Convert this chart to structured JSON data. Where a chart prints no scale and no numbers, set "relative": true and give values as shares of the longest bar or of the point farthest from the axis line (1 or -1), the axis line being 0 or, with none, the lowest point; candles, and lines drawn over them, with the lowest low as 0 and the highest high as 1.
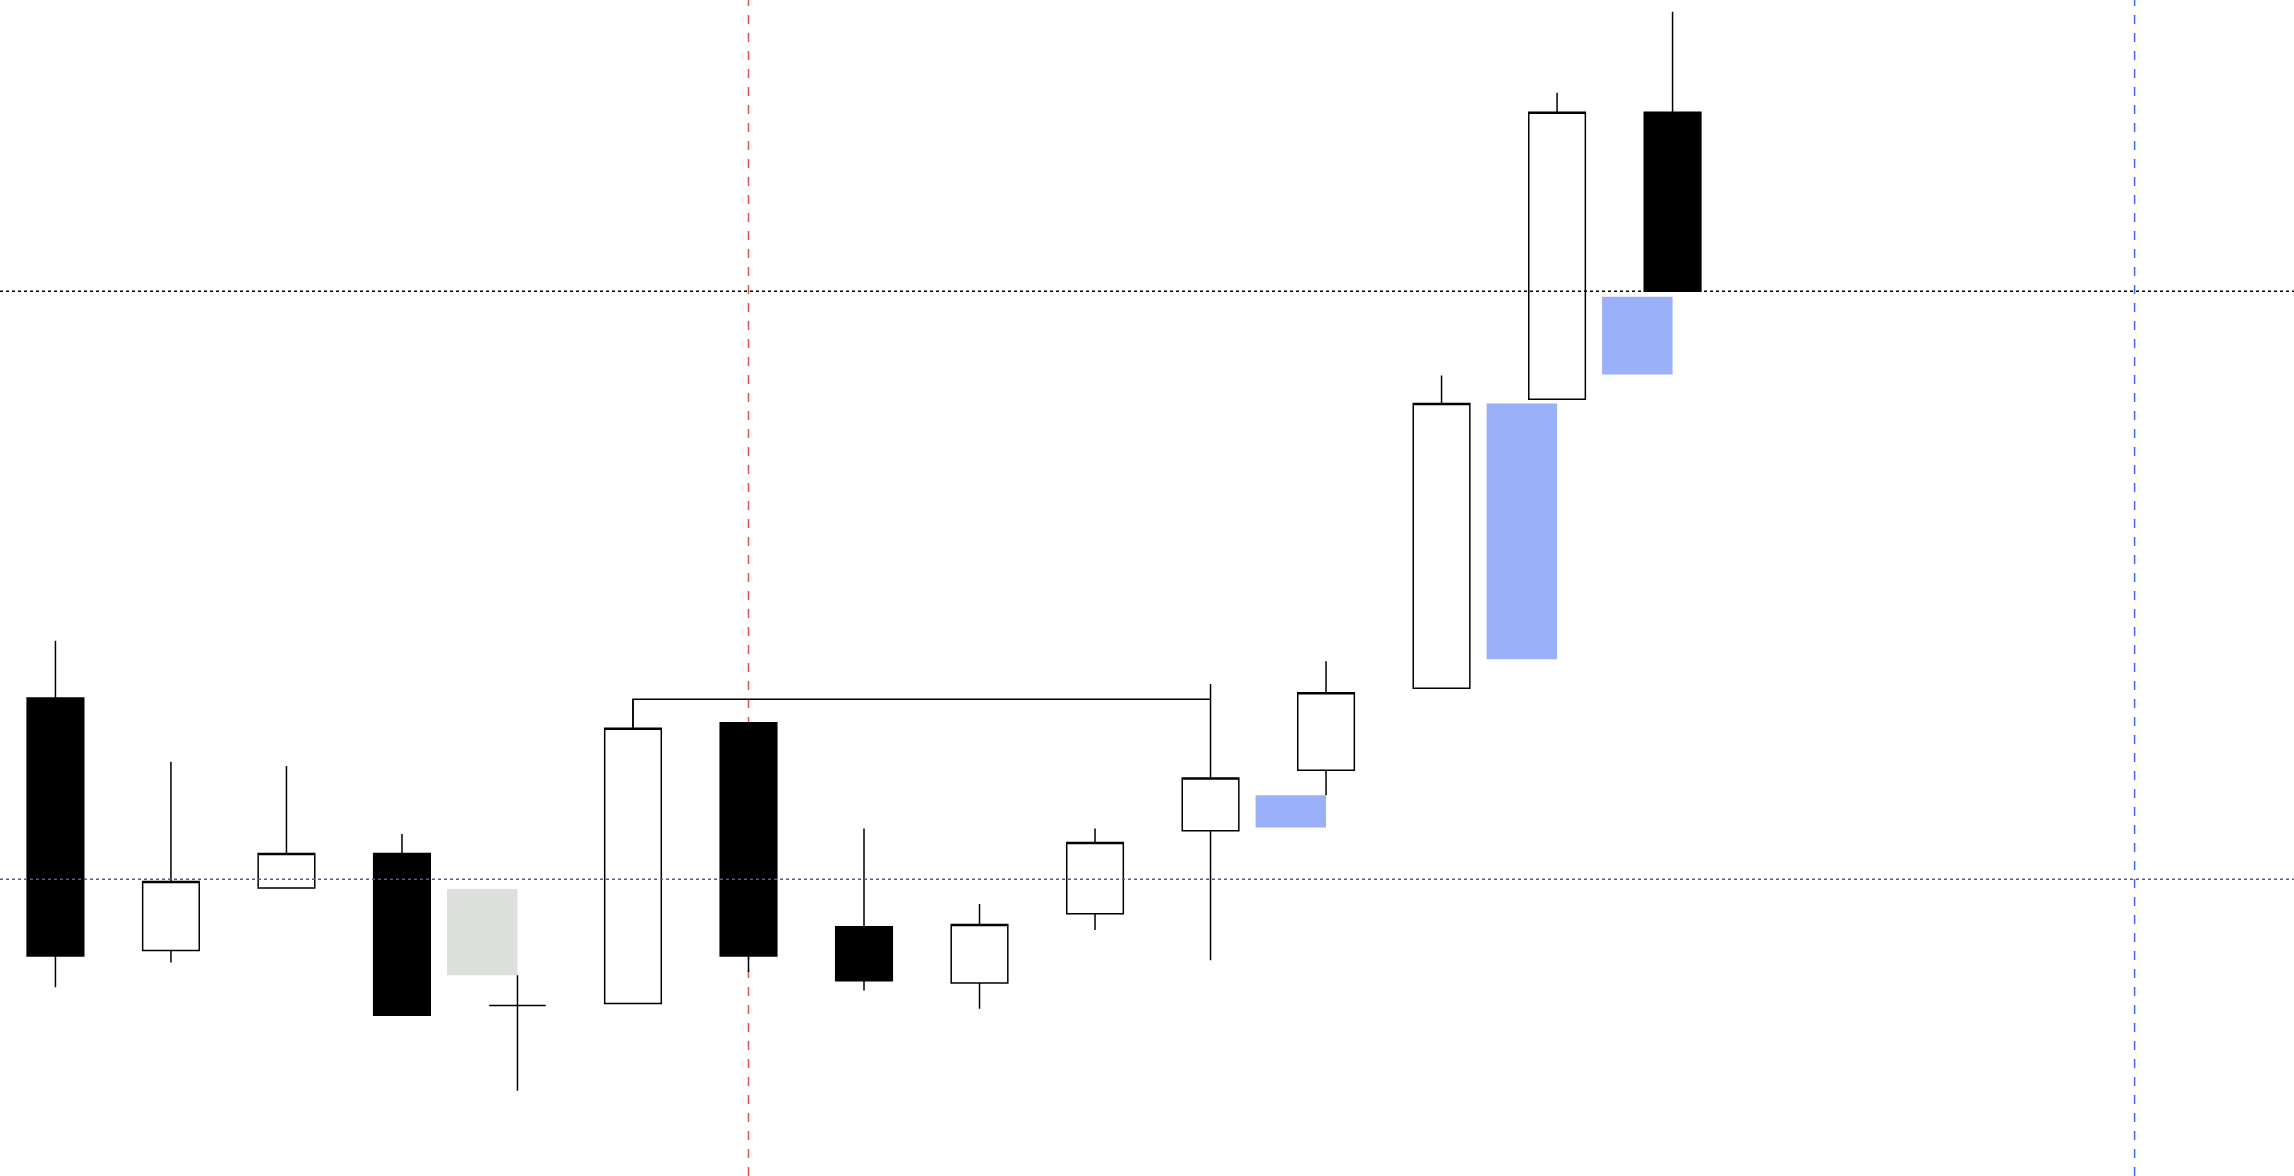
{
  "chart_data": {
    "type": "candlestick",
    "relative": true,
    "categories": [
      null,
      null,
      null,
      null,
      null,
      null,
      null,
      null,
      null,
      null,
      null,
      null,
      null,
      null,
      null
    ],
    "ohlc": [
      [
        0.364,
        0.417,
        0.096,
        0.125
      ],
      [
        0.13,
        0.305,
        0.119,
        0.194
      ],
      [
        0.188,
        0.301,
        0.188,
        0.22
      ],
      [
        0.22,
        0.238,
        0.07,
        0.07
      ],
      [
        0.079,
        0.107,
        0.0,
        0.079
      ],
      [
        0.081,
        0.363,
        0.081,
        0.336
      ],
      [
        0.341,
        0.341,
        0.11,
        0.125
      ],
      [
        0.152,
        0.243,
        0.093,
        0.102
      ],
      [
        0.1,
        0.173,
        0.076,
        0.154
      ],
      [
        0.164,
        0.243,
        0.149,
        0.23
      ],
      [
        0.241,
        0.377,
        0.121,
        0.29
      ],
      [
        0.297,
        0.398,
        0.274,
        0.369
      ],
      [
        0.373,
        0.663,
        0.373,
        0.637
      ],
      [
        0.641,
        0.925,
        0.641,
        0.907
      ],
      [
        0.907,
        1.0,
        0.741,
        0.741
      ]
    ],
    "series": [
      {
        "type": "bar",
        "values": [
          null,
          null,
          null,
          null,
          0.08,
          null,
          null,
          null,
          null,
          null,
          null,
          0.03,
          null,
          0.237,
          0.072
        ],
        "base": [
          null,
          null,
          null,
          null,
          0.107,
          null,
          null,
          null,
          null,
          null,
          null,
          0.244,
          null,
          0.4,
          0.664
        ],
        "colors": [
          null,
          null,
          null,
          null,
          "#dde0dc",
          null,
          null,
          null,
          null,
          null,
          null,
          "#9ab0f9",
          null,
          "#9ab0f9",
          "#9ab0f9"
        ]
      }
    ],
    "ref_lines": [
      {
        "axis": "y",
        "value": 0.741,
        "color": "#000000",
        "line_style": "dotted"
      },
      {
        "axis": "y",
        "value": 0.196,
        "color": "#6a4fa0",
        "line_style": "dotted"
      }
    ],
    "grid": false,
    "legend": false,
    "tick_labels": false
  }
}
